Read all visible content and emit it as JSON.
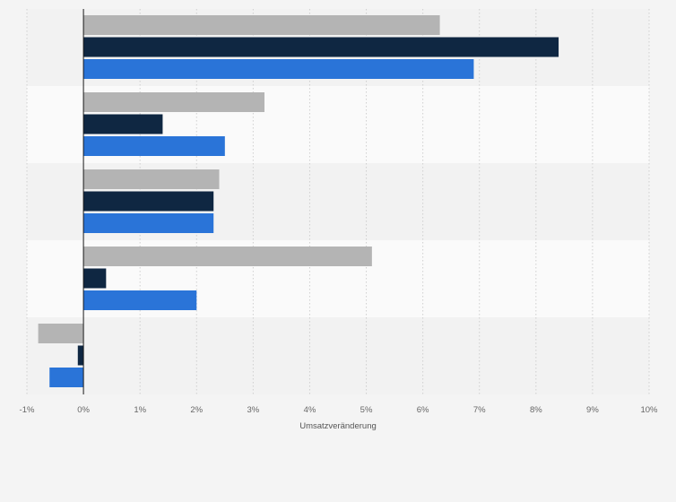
{
  "chart_data": {
    "type": "bar",
    "orientation": "horizontal",
    "xlabel": "Umsatzveränderung",
    "xlim": [
      -1,
      10
    ],
    "x_ticks": [
      -1,
      0,
      1,
      2,
      3,
      4,
      5,
      6,
      7,
      8,
      9,
      10
    ],
    "x_tick_labels": [
      "-1%",
      "0%",
      "1%",
      "2%",
      "3%",
      "4%",
      "5%",
      "6%",
      "7%",
      "8%",
      "9%",
      "10%"
    ],
    "categories": [
      "",
      "",
      "",
      "",
      ""
    ],
    "grid": true,
    "legend": "none",
    "series": [
      {
        "color": "#b4b4b4",
        "values": [
          6.3,
          3.2,
          2.4,
          5.1,
          -0.8
        ]
      },
      {
        "color": "#0f2742",
        "values": [
          8.4,
          1.4,
          2.3,
          0.4,
          -0.1
        ]
      },
      {
        "color": "#2a74d8",
        "values": [
          6.9,
          2.5,
          2.3,
          2.0,
          -0.6
        ]
      }
    ]
  }
}
